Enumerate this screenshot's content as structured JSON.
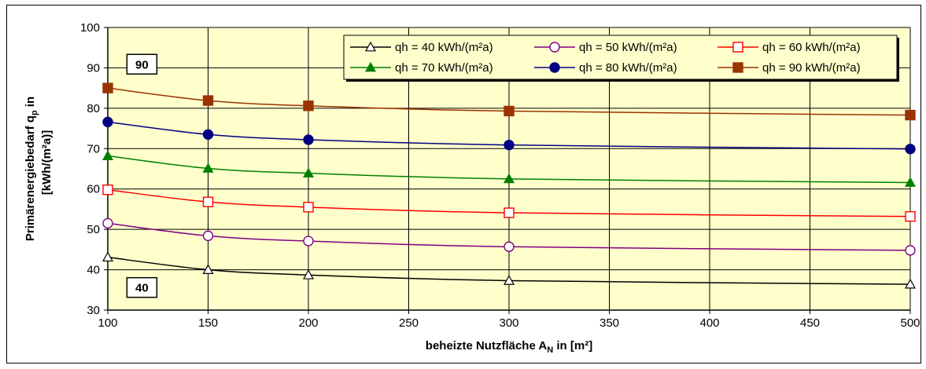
{
  "chart_data": {
    "type": "line",
    "xlabel": "beheizte Nutzfläche A",
    "xlabel_sub": "N",
    "xlabel_suffix": " in [m²]",
    "ylabel_line1": "Primärenergiebedarf q",
    "ylabel_sub": "p",
    "ylabel_suffix": " in",
    "ylabel_line2": "[kWh/(m²a)]",
    "xlim": [
      100,
      500
    ],
    "ylim": [
      30,
      100
    ],
    "x_ticks": [
      "100",
      "150",
      "200",
      "250",
      "300",
      "350",
      "400",
      "450",
      "500"
    ],
    "y_ticks": [
      "30",
      "40",
      "50",
      "60",
      "70",
      "80",
      "90",
      "100"
    ],
    "grid": true,
    "legend_position": "top-right",
    "plot_background": "#FFFFCC",
    "x": [
      100,
      150,
      200,
      300,
      500
    ],
    "series": [
      {
        "name": "qh = 40 kWh/(m²a)",
        "values": [
          43.1,
          40.0,
          38.7,
          37.3,
          36.4
        ],
        "color": "#000000",
        "marker": "open-triangle"
      },
      {
        "name": "qh = 50 kWh/(m²a)",
        "values": [
          51.5,
          48.4,
          47.1,
          45.7,
          44.8
        ],
        "color": "#800080",
        "marker": "open-circle"
      },
      {
        "name": "qh = 60 kWh/(m²a)",
        "values": [
          59.8,
          56.8,
          55.5,
          54.1,
          53.2
        ],
        "color": "#FF0000",
        "marker": "open-square"
      },
      {
        "name": "qh = 70 kWh/(m²a)",
        "values": [
          68.2,
          65.1,
          63.9,
          62.5,
          61.6
        ],
        "color": "#008000",
        "marker": "filled-triangle"
      },
      {
        "name": "qh = 80 kWh/(m²a)",
        "values": [
          76.6,
          73.5,
          72.2,
          70.9,
          69.9
        ],
        "color": "#000080",
        "marker": "filled-circle"
      },
      {
        "name": "qh = 90 kWh/(m²a)",
        "values": [
          85.0,
          81.9,
          80.6,
          79.3,
          78.3
        ],
        "color": "#993300",
        "marker": "filled-square"
      }
    ],
    "annotations": [
      {
        "text": "90",
        "x": 117,
        "y": 91
      },
      {
        "text": "40",
        "x": 117,
        "y": 35.7
      }
    ]
  }
}
